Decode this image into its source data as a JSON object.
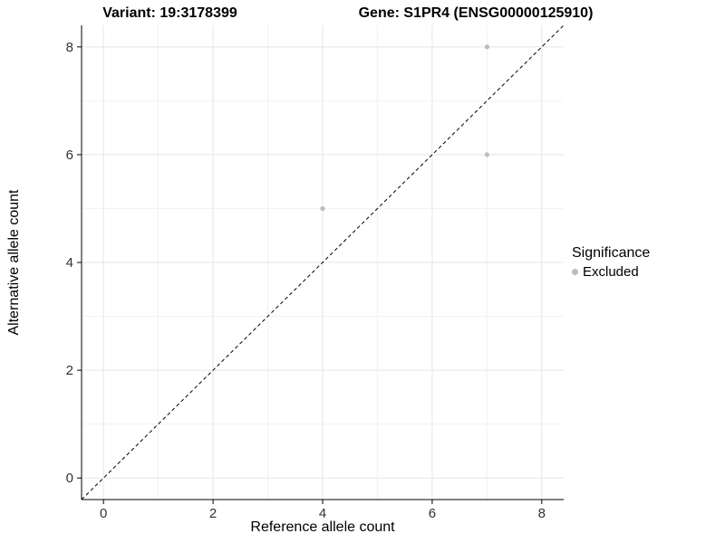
{
  "chart_data": {
    "type": "scatter",
    "titles": [
      "Variant: 19:3178399",
      "Gene: S1PR4 (ENSG00000125910)"
    ],
    "xlabel": "Reference allele count",
    "ylabel": "Alternative allele count",
    "xlim": [
      -0.4,
      8.4
    ],
    "ylim": [
      -0.4,
      8.4
    ],
    "xticks": [
      0,
      2,
      4,
      6,
      8
    ],
    "yticks": [
      0,
      2,
      4,
      6,
      8
    ],
    "minor_xticks": [
      1,
      3,
      5,
      7
    ],
    "minor_yticks": [
      1,
      3,
      5,
      7
    ],
    "grid": "major+minor",
    "identity_line": {
      "slope": 1,
      "intercept": 0,
      "style": "dashed",
      "color": "#000000"
    },
    "series": [
      {
        "name": "Excluded",
        "color": "#bdbdbd",
        "points": [
          [
            4,
            5
          ],
          [
            7,
            6
          ],
          [
            7,
            8
          ]
        ]
      }
    ],
    "legend": {
      "title": "Significance",
      "position": "right",
      "entries": [
        {
          "label": "Excluded",
          "color": "#bdbdbd"
        }
      ]
    },
    "colors": {
      "background": "#ffffff",
      "major_grid": "#e5e5e5",
      "minor_grid": "#f2f2f2",
      "axis": "#000000",
      "tick_text": "#333333"
    }
  }
}
